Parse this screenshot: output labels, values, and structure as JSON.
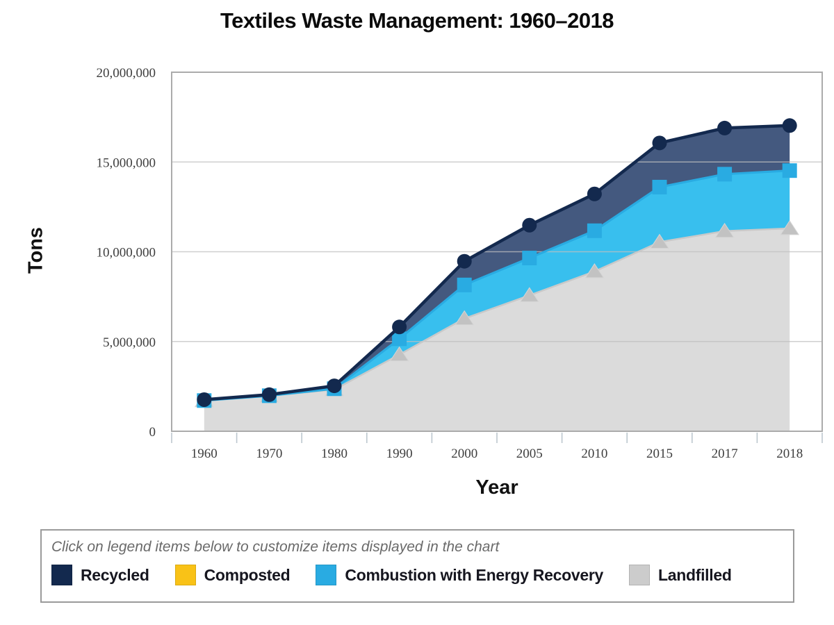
{
  "chart_data": {
    "type": "area",
    "stacked": true,
    "title": "Textiles Waste Management: 1960–2018",
    "xlabel": "Year",
    "ylabel": "Tons",
    "categories": [
      "1960",
      "1970",
      "1980",
      "1990",
      "2000",
      "2005",
      "2010",
      "2015",
      "2017",
      "2018"
    ],
    "ylim": [
      0,
      20000000
    ],
    "y_ticks": [
      {
        "value": 0,
        "label": "0"
      },
      {
        "value": 5000000,
        "label": "5,000,000"
      },
      {
        "value": 10000000,
        "label": "10,000,000"
      },
      {
        "value": 15000000,
        "label": "15,000,000"
      },
      {
        "value": 20000000,
        "label": "20,000,000"
      }
    ],
    "grid": "horizontal",
    "legend_position": "bottom",
    "stack_order_bottom_to_top": [
      "Landfilled",
      "Combustion with Energy Recovery",
      "Composted",
      "Recycled"
    ],
    "series": [
      {
        "name": "Recycled",
        "values": [
          50000,
          60000,
          160000,
          660000,
          1320000,
          1830000,
          2050000,
          2460000,
          2570000,
          2510000
        ],
        "fill": "#44597F",
        "line": "#13294E",
        "line_width": 4.5,
        "marker": "circle",
        "marker_color": "#13294E"
      },
      {
        "name": "Composted",
        "values": [
          0,
          0,
          0,
          0,
          0,
          0,
          0,
          0,
          0,
          0
        ],
        "fill": "#F9C217",
        "line": "#F9C217",
        "line_width": 0,
        "marker": "none",
        "marker_color": "#F9C217"
      },
      {
        "name": "Combustion with Energy Recovery",
        "values": [
          0,
          10000,
          50000,
          880000,
          1870000,
          2080000,
          2270000,
          3060000,
          3170000,
          3220000
        ],
        "fill": "#38BFEE",
        "line": "#29ABE2",
        "line_width": 3.2,
        "marker": "square",
        "marker_color": "#29ABE2"
      },
      {
        "name": "Landfilled",
        "values": [
          1710000,
          1970000,
          2320000,
          4270000,
          6280000,
          7570000,
          8900000,
          10540000,
          11150000,
          11300000
        ],
        "fill": "#DBDBDB",
        "line": "#C9C9C9",
        "line_width": 2.5,
        "marker": "triangle",
        "marker_color": "#C2C2C2"
      }
    ]
  },
  "legend": {
    "hint": "Click on legend items below to customize items displayed in the chart",
    "items": [
      {
        "label": "Recycled",
        "color": "#13294E"
      },
      {
        "label": "Composted",
        "color": "#F9C217"
      },
      {
        "label": "Combustion with Energy Recovery",
        "color": "#29ABE2"
      },
      {
        "label": "Landfilled",
        "color": "#CCCCCC"
      }
    ]
  },
  "style": {
    "gridline_color": "#BFBFBF",
    "frame_color": "#ABABAB",
    "tick_color": "#BCC7CE"
  }
}
